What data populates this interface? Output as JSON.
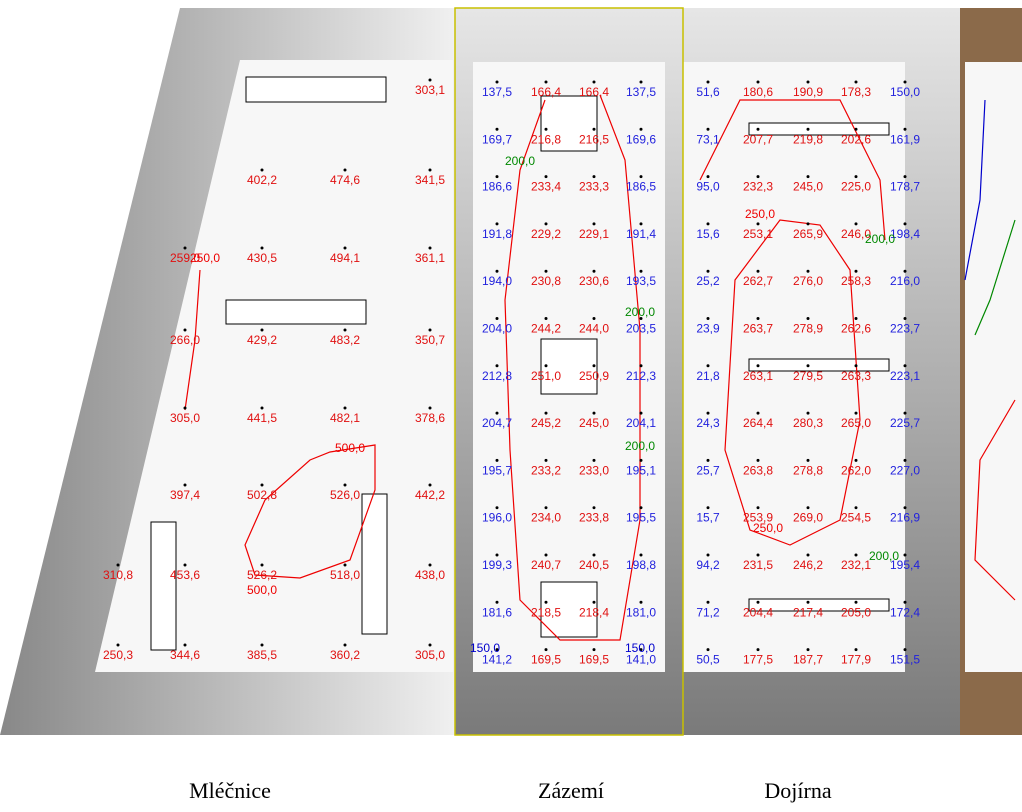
{
  "rooms": [
    {
      "name": "Mléčnice",
      "values": [
        [
          null,
          null,
          null,
          null,
          "303,1"
        ],
        [
          null,
          null,
          "402,2",
          "474,6",
          "341,5"
        ],
        [
          null,
          "259,0",
          "430,5",
          "494,1",
          "361,1"
        ],
        [
          null,
          "266,0",
          "429,2",
          "483,2",
          "350,7"
        ],
        [
          null,
          "305,0",
          "441,5",
          "482,1",
          "378,6"
        ],
        [
          null,
          "397,4",
          "502,8",
          "526,0",
          "442,2"
        ],
        [
          "310,8",
          "453,6",
          "526,2",
          "518,0",
          "438,0"
        ],
        [
          "250,3",
          "344,6",
          "385,5",
          "360,2",
          "305,0"
        ]
      ]
    },
    {
      "name": "Zázemí",
      "values": [
        [
          "137,5",
          "166,4",
          "166,4",
          "137,5"
        ],
        [
          "169,7",
          "216,8",
          "216,5",
          "169,6"
        ],
        [
          "186,6",
          "233,4",
          "233,3",
          "186,5"
        ],
        [
          "191,8",
          "229,2",
          "229,1",
          "191,4"
        ],
        [
          "194,0",
          "230,8",
          "230,6",
          "193,5"
        ],
        [
          "204,0",
          "244,2",
          "244,0",
          "203,5"
        ],
        [
          "212,8",
          "251,0",
          "250,9",
          "212,3"
        ],
        [
          "204,7",
          "245,2",
          "245,0",
          "204,1"
        ],
        [
          "195,7",
          "233,2",
          "233,0",
          "195,1"
        ],
        [
          "196,0",
          "234,0",
          "233,8",
          "195,5"
        ],
        [
          "199,3",
          "240,7",
          "240,5",
          "198,8"
        ],
        [
          "181,6",
          "218,5",
          "218,4",
          "181,0"
        ],
        [
          "141,2",
          "169,5",
          "169,5",
          "141,0"
        ]
      ]
    },
    {
      "name": "Dojírna",
      "values": [
        [
          "51,6",
          "180,6",
          "190,9",
          "178,3",
          "150,0"
        ],
        [
          "73,1",
          "207,7",
          "219,8",
          "202,6",
          "161,9"
        ],
        [
          "95,0",
          "232,3",
          "245,0",
          "225,0",
          "178,7"
        ],
        [
          "15,6",
          "253,1",
          "265,9",
          "246,0",
          "198,4"
        ],
        [
          "25,2",
          "262,7",
          "276,0",
          "258,3",
          "216,0"
        ],
        [
          "23,9",
          "263,7",
          "278,9",
          "262,6",
          "223,7"
        ],
        [
          "21,8",
          "263,1",
          "279,5",
          "263,3",
          "223,1"
        ],
        [
          "24,3",
          "264,4",
          "280,3",
          "265,0",
          "225,7"
        ],
        [
          "25,7",
          "263,8",
          "278,8",
          "262,0",
          "227,0"
        ],
        [
          "15,7",
          "253,9",
          "269,0",
          "254,5",
          "216,9"
        ],
        [
          "94,2",
          "231,5",
          "246,2",
          "232,1",
          "195,4"
        ],
        [
          "71,2",
          "204,4",
          "217,4",
          "205,0",
          "172,4"
        ],
        [
          "50,5",
          "177,5",
          "187,7",
          "177,9",
          "151,5"
        ]
      ]
    }
  ],
  "contour_labels": [
    "500,0",
    "500,0",
    "250,0",
    "200,0",
    "200,0",
    "200,0",
    "250,0",
    "200,0",
    "250,0",
    "200,0",
    "150,0",
    "150,0"
  ]
}
